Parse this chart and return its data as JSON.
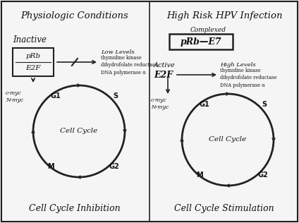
{
  "bg_color": "#e8e8e8",
  "panel_bg": "#f5f5f5",
  "border_color": "#222222",
  "text_color": "#111111",
  "left_title": "Physiologic Conditions",
  "right_title": "High Risk HPV Infection",
  "left_subtitle": "Inactive",
  "right_subtitle_complexed": "Complexed",
  "right_subtitle_active": "Active",
  "right_e2f_label": "E2F",
  "left_box_top": "pRb",
  "left_box_bot": "E2F",
  "right_box_text": "pRb—E7",
  "left_low": "Low Levels",
  "left_enzymes": "thymidine kinase\ndihydrofolate reductase\nDNA polymerase α",
  "right_high": "High Levels",
  "right_enzymes": "thymidine kinase\ndihydrofolate reductase\nDNA polymerase α",
  "cell_cycle_label": "Cell Cycle",
  "left_footer": "Cell Cycle Inhibition",
  "right_footer": "Cell Cycle Stimulation",
  "g1": "G1",
  "s": "S",
  "g2": "G2",
  "m": "M",
  "cmyc_left": "c-myc\nN-myc",
  "cmyc_right": "c-myc\nN-myc"
}
